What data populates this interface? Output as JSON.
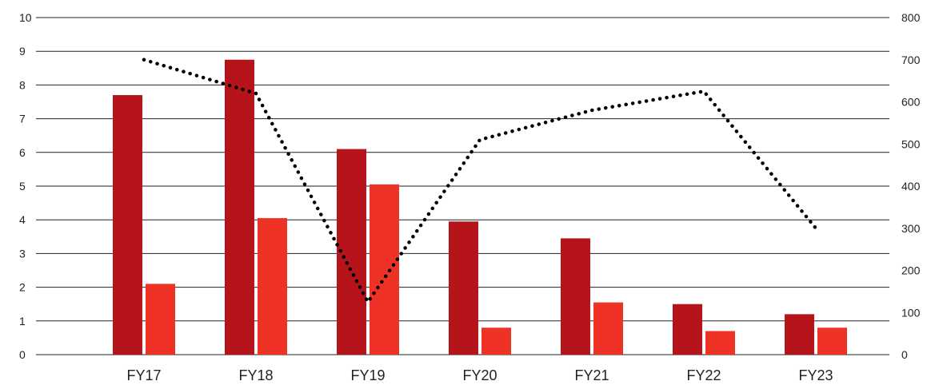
{
  "chart_data": {
    "type": "bar",
    "title": "",
    "xlabel": "",
    "ylabel": "",
    "y2label": "",
    "categories": [
      "FY17",
      "FY18",
      "FY19",
      "FY20",
      "FY21",
      "FY22",
      "FY23"
    ],
    "series": [
      {
        "type": "bar",
        "axis": "left",
        "color": "#b5141b",
        "values": [
          7.7,
          8.75,
          6.1,
          3.95,
          3.45,
          1.5,
          1.2
        ]
      },
      {
        "type": "bar",
        "axis": "left",
        "color": "#ee3226",
        "values": [
          2.1,
          4.05,
          5.05,
          0.8,
          1.55,
          0.7,
          0.8
        ]
      },
      {
        "type": "line",
        "axis": "right",
        "style": "dotted",
        "color": "#000000",
        "values": [
          700,
          620,
          125,
          510,
          580,
          625,
          300
        ]
      }
    ],
    "ylim": [
      0,
      10
    ],
    "y_ticks": [
      "0",
      "1",
      "2",
      "3",
      "4",
      "5",
      "6",
      "7",
      "8",
      "9",
      "10"
    ],
    "y2lim": [
      0,
      800
    ],
    "y2_ticks": [
      "0",
      "100",
      "200",
      "300",
      "400",
      "500",
      "600",
      "700",
      "800"
    ],
    "grid": true,
    "legend": "none"
  }
}
